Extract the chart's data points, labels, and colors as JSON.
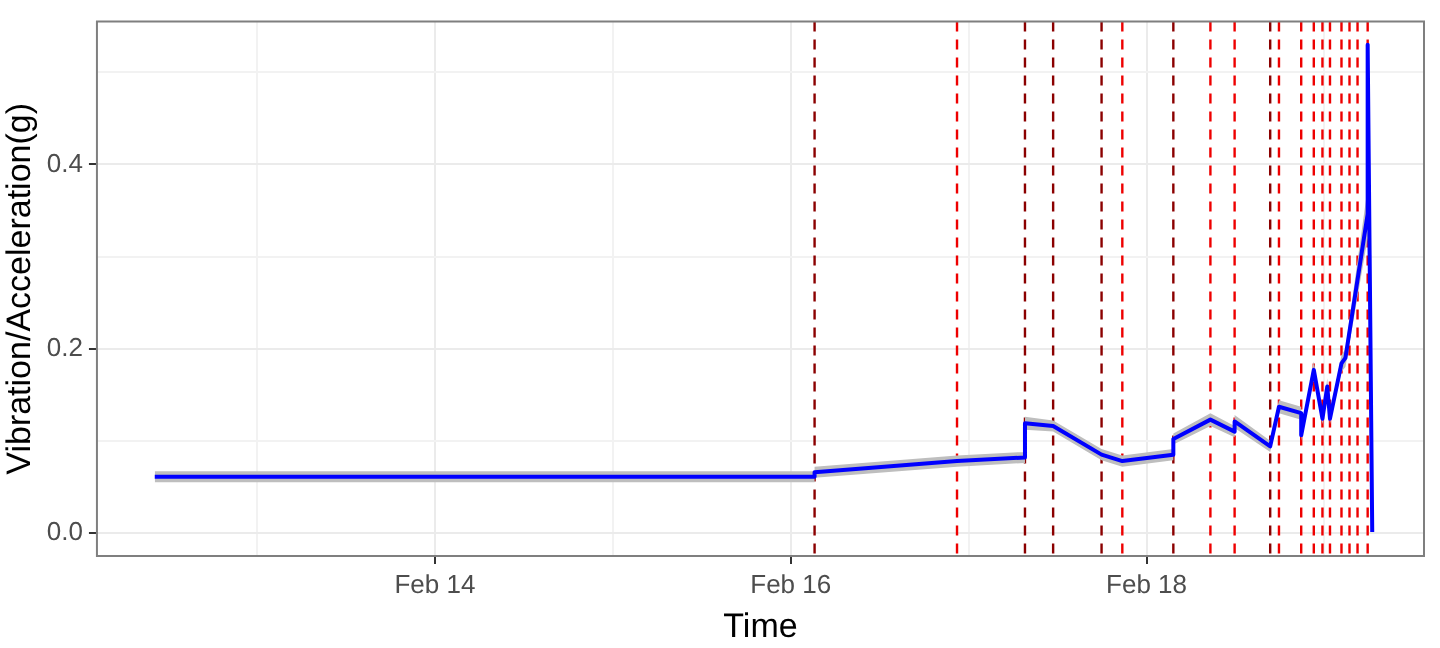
{
  "chart_data": {
    "type": "line",
    "xlabel": "Time",
    "ylabel": "Vibration/Acceleration(g)",
    "xlim": [
      "--02-12T02:24",
      "--02-19T13:26"
    ],
    "xticks": [
      {
        "value": "--02-13",
        "label": null
      },
      {
        "value": "--02-14",
        "label": "Feb 14"
      },
      {
        "value": "--02-15",
        "label": null
      },
      {
        "value": "--02-16",
        "label": "Feb 16"
      },
      {
        "value": "--02-17",
        "label": null
      },
      {
        "value": "--02-18",
        "label": "Feb 18"
      },
      {
        "value": "--02-19",
        "label": null
      }
    ],
    "ylim": [
      -0.025,
      0.555
    ],
    "yticks": [
      {
        "value": 0,
        "label": "0.0"
      },
      {
        "value": 0.1,
        "label": null
      },
      {
        "value": 0.2,
        "label": "0.2"
      },
      {
        "value": 0.3,
        "label": null
      },
      {
        "value": 0.4,
        "label": "0.4"
      },
      {
        "value": 0.5,
        "label": null
      }
    ],
    "grid": true,
    "series": [
      {
        "color": "#0000ff",
        "x": [
          "--02-12T10:12",
          "--02-16T03:13",
          "--02-16T03:13",
          "--02-16T22:26",
          "--02-17T07:36",
          "--02-17T07:36",
          "--02-17T11:24",
          "--02-17T17:56",
          "--02-17T20:44",
          "--02-18T03:37",
          "--02-18T03:37",
          "--02-18T08:37",
          "--02-18T11:53",
          "--02-18T11:53",
          "--02-18T16:41",
          "--02-18T17:52",
          "--02-18T20:52",
          "--02-18T20:52",
          "--02-18T22:34",
          "--02-18T23:44",
          "--02-19T00:23",
          "--02-19T00:45",
          "--02-19T02:18",
          "--02-19T02:50",
          "--02-19T05:50",
          "--02-19T05:50",
          "--02-19T06:27"
        ],
        "values": [
          0.061,
          0.061,
          0.066,
          0.078,
          0.082,
          0.119,
          0.116,
          0.085,
          0.078,
          0.085,
          0.102,
          0.123,
          0.11,
          0.121,
          0.094,
          0.137,
          0.13,
          0.106,
          0.177,
          0.124,
          0.159,
          0.124,
          0.184,
          0.19,
          0.346,
          0.53,
          0.001
        ],
        "lower": [
          0.055,
          0.055,
          0.06,
          0.072,
          0.076,
          0.112,
          0.11,
          0.079,
          0.072,
          0.079,
          0.096,
          0.116,
          0.104,
          0.114,
          0.088,
          0.13,
          0.123,
          0.1,
          0.168,
          0.118,
          0.15,
          0.118,
          0.175,
          0.18,
          0.32,
          0.32,
          0.001
        ],
        "upper": [
          0.067,
          0.067,
          0.072,
          0.084,
          0.088,
          0.126,
          0.122,
          0.091,
          0.084,
          0.091,
          0.108,
          0.13,
          0.116,
          0.128,
          0.1,
          0.144,
          0.137,
          0.112,
          0.186,
          0.13,
          0.168,
          0.13,
          0.193,
          0.2,
          0.375,
          0.375,
          0.001
        ]
      }
    ],
    "ref_lines": [
      {
        "axis": "x",
        "value": "--02-16T03:13",
        "color": "#8b0000",
        "line_style": "dashed"
      },
      {
        "axis": "x",
        "value": "--02-16T22:26",
        "color": "#ee0000",
        "line_style": "dashed"
      },
      {
        "axis": "x",
        "value": "--02-17T07:36",
        "color": "#8b0000",
        "line_style": "dashed"
      },
      {
        "axis": "x",
        "value": "--02-17T11:24",
        "color": "#8b0000",
        "line_style": "dashed"
      },
      {
        "axis": "x",
        "value": "--02-17T17:56",
        "color": "#8b0000",
        "line_style": "dashed"
      },
      {
        "axis": "x",
        "value": "--02-17T20:44",
        "color": "#ee0000",
        "line_style": "dashed"
      },
      {
        "axis": "x",
        "value": "--02-18T03:37",
        "color": "#8b0000",
        "line_style": "dashed"
      },
      {
        "axis": "x",
        "value": "--02-18T08:37",
        "color": "#ee0000",
        "line_style": "dashed"
      },
      {
        "axis": "x",
        "value": "--02-18T11:53",
        "color": "#ee0000",
        "line_style": "dashed"
      },
      {
        "axis": "x",
        "value": "--02-18T16:41",
        "color": "#8b0000",
        "line_style": "dashed"
      },
      {
        "axis": "x",
        "value": "--02-18T17:52",
        "color": "#ee0000",
        "line_style": "dashed"
      },
      {
        "axis": "x",
        "value": "--02-18T20:52",
        "color": "#ee0000",
        "line_style": "dashed"
      },
      {
        "axis": "x",
        "value": "--02-18T22:34",
        "color": "#ee0000",
        "line_style": "dashed"
      },
      {
        "axis": "x",
        "value": "--02-18T23:44",
        "color": "#ee0000",
        "line_style": "dashed"
      },
      {
        "axis": "x",
        "value": "--02-19T00:45",
        "color": "#ee0000",
        "line_style": "dashed"
      },
      {
        "axis": "x",
        "value": "--02-19T02:18",
        "color": "#ee0000",
        "line_style": "dashed"
      },
      {
        "axis": "x",
        "value": "--02-19T03:23",
        "color": "#ee0000",
        "line_style": "dashed"
      },
      {
        "axis": "x",
        "value": "--02-19T04:28",
        "color": "#ee0000",
        "line_style": "dashed"
      },
      {
        "axis": "x",
        "value": "--02-19T05:50",
        "color": "#ee0000",
        "line_style": "dashed"
      }
    ]
  }
}
